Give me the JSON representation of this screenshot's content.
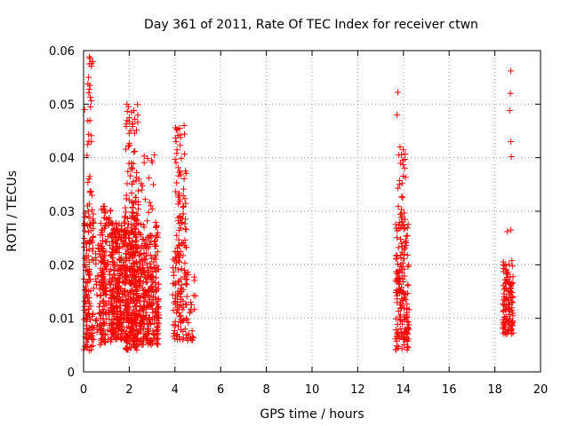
{
  "chart_data": {
    "type": "scatter",
    "title": "Day 361 of 2011, Rate Of TEC Index for receiver ctwn",
    "xlabel": "GPS time / hours",
    "ylabel": "ROTI / TECUs",
    "xlim": [
      0,
      20
    ],
    "ylim": [
      0,
      0.06
    ],
    "x_ticks": [
      "0",
      "2",
      "4",
      "6",
      "8",
      "10",
      "12",
      "14",
      "16",
      "18",
      "20"
    ],
    "y_ticks": [
      "0",
      "0.01",
      "0.02",
      "0.03",
      "0.04",
      "0.05",
      "0.06"
    ],
    "grid": true,
    "marker": "+",
    "colors": {
      "series": "#ff0000"
    },
    "series": [
      {
        "clusters": [
          {
            "x_range": [
              0.0,
              0.45
            ],
            "y_range": [
              0.004,
              0.031
            ],
            "n": 140
          },
          {
            "x_range": [
              0.15,
              0.4
            ],
            "y_range": [
              0.031,
              0.059
            ],
            "n": 25
          },
          {
            "x_range": [
              0.5,
              0.9
            ],
            "y_range": [
              0.007,
              0.024
            ],
            "n": 60
          },
          {
            "x_range": [
              0.7,
              1.2
            ],
            "y_range": [
              0.005,
              0.031
            ],
            "n": 130
          },
          {
            "x_range": [
              1.2,
              1.8
            ],
            "y_range": [
              0.006,
              0.028
            ],
            "n": 260
          },
          {
            "x_range": [
              1.8,
              2.4
            ],
            "y_range": [
              0.004,
              0.032
            ],
            "n": 320
          },
          {
            "x_range": [
              2.4,
              3.3
            ],
            "y_range": [
              0.005,
              0.026
            ],
            "n": 280
          },
          {
            "x_range": [
              1.8,
              2.4
            ],
            "y_range": [
              0.032,
              0.05
            ],
            "n": 45
          },
          {
            "x_range": [
              2.4,
              3.2
            ],
            "y_range": [
              0.026,
              0.041
            ],
            "n": 25
          },
          {
            "x_range": [
              3.9,
              4.5
            ],
            "y_range": [
              0.006,
              0.022
            ],
            "n": 90
          },
          {
            "x_range": [
              4.0,
              4.5
            ],
            "y_range": [
              0.022,
              0.046
            ],
            "n": 70
          },
          {
            "x_range": [
              4.5,
              4.9
            ],
            "y_range": [
              0.005,
              0.02
            ],
            "n": 30
          },
          {
            "x_range": [
              13.65,
              14.25
            ],
            "y_range": [
              0.004,
              0.028
            ],
            "n": 170
          },
          {
            "x_range": [
              13.75,
              14.1
            ],
            "y_range": [
              0.028,
              0.042
            ],
            "n": 25
          },
          {
            "x_range": [
              18.35,
              18.8
            ],
            "y_range": [
              0.007,
              0.021
            ],
            "n": 120
          }
        ],
        "points": [
          {
            "x": 0.25,
            "y": 0.0588
          },
          {
            "x": 0.3,
            "y": 0.0585
          },
          {
            "x": 0.22,
            "y": 0.055
          },
          {
            "x": 0.28,
            "y": 0.0535
          },
          {
            "x": 0.05,
            "y": 0.049
          },
          {
            "x": 0.3,
            "y": 0.0495
          },
          {
            "x": 1.9,
            "y": 0.05
          },
          {
            "x": 2.1,
            "y": 0.0485
          },
          {
            "x": 2.0,
            "y": 0.0475
          },
          {
            "x": 3.1,
            "y": 0.0405
          },
          {
            "x": 4.4,
            "y": 0.046
          },
          {
            "x": 4.2,
            "y": 0.0455
          },
          {
            "x": 4.05,
            "y": 0.043
          },
          {
            "x": 13.75,
            "y": 0.0522
          },
          {
            "x": 13.72,
            "y": 0.048
          },
          {
            "x": 13.85,
            "y": 0.042
          },
          {
            "x": 13.8,
            "y": 0.0405
          },
          {
            "x": 18.7,
            "y": 0.0562
          },
          {
            "x": 18.68,
            "y": 0.052
          },
          {
            "x": 18.65,
            "y": 0.0488
          },
          {
            "x": 18.7,
            "y": 0.043
          },
          {
            "x": 18.72,
            "y": 0.0402
          },
          {
            "x": 18.55,
            "y": 0.0262
          },
          {
            "x": 18.7,
            "y": 0.0265
          }
        ]
      }
    ]
  }
}
